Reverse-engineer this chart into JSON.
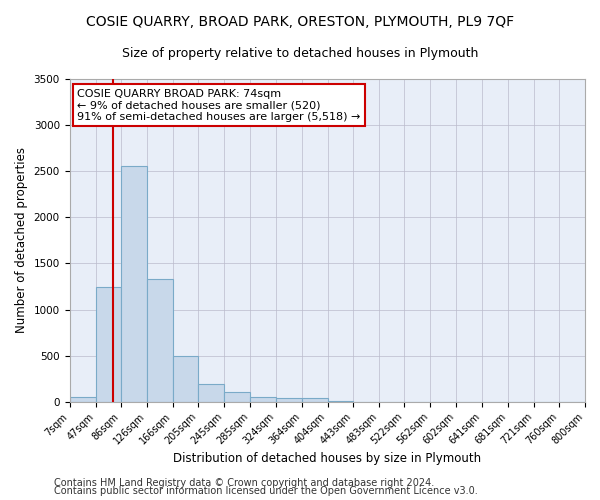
{
  "title": "COSIE QUARRY, BROAD PARK, ORESTON, PLYMOUTH, PL9 7QF",
  "subtitle": "Size of property relative to detached houses in Plymouth",
  "xlabel": "Distribution of detached houses by size in Plymouth",
  "ylabel": "Number of detached properties",
  "footer1": "Contains HM Land Registry data © Crown copyright and database right 2024.",
  "footer2": "Contains public sector information licensed under the Open Government Licence v3.0.",
  "bin_edges": [
    7,
    47,
    86,
    126,
    166,
    205,
    245,
    285,
    324,
    364,
    404,
    443,
    483,
    522,
    562,
    602,
    641,
    681,
    721,
    760,
    800
  ],
  "bar_heights": [
    50,
    1240,
    2560,
    1330,
    500,
    190,
    100,
    50,
    40,
    40,
    5,
    2,
    2,
    1,
    1,
    1,
    0,
    0,
    0,
    0
  ],
  "bar_color": "#c8d8ea",
  "bar_edge_color": "#7aaac8",
  "bg_color": "#e8eef8",
  "grid_color": "#bbbbcc",
  "property_size": 74,
  "vline_color": "#cc0000",
  "annotation_line1": "COSIE QUARRY BROAD PARK: 74sqm",
  "annotation_line2": "← 9% of detached houses are smaller (520)",
  "annotation_line3": "91% of semi-detached houses are larger (5,518) →",
  "annotation_box_color": "#cc0000",
  "annotation_bg": "#ffffff",
  "ylim": [
    0,
    3500
  ],
  "title_fontsize": 10,
  "subtitle_fontsize": 9,
  "tick_fontsize": 7,
  "ylabel_fontsize": 8.5,
  "xlabel_fontsize": 8.5,
  "footer_fontsize": 7,
  "annot_fontsize": 8
}
